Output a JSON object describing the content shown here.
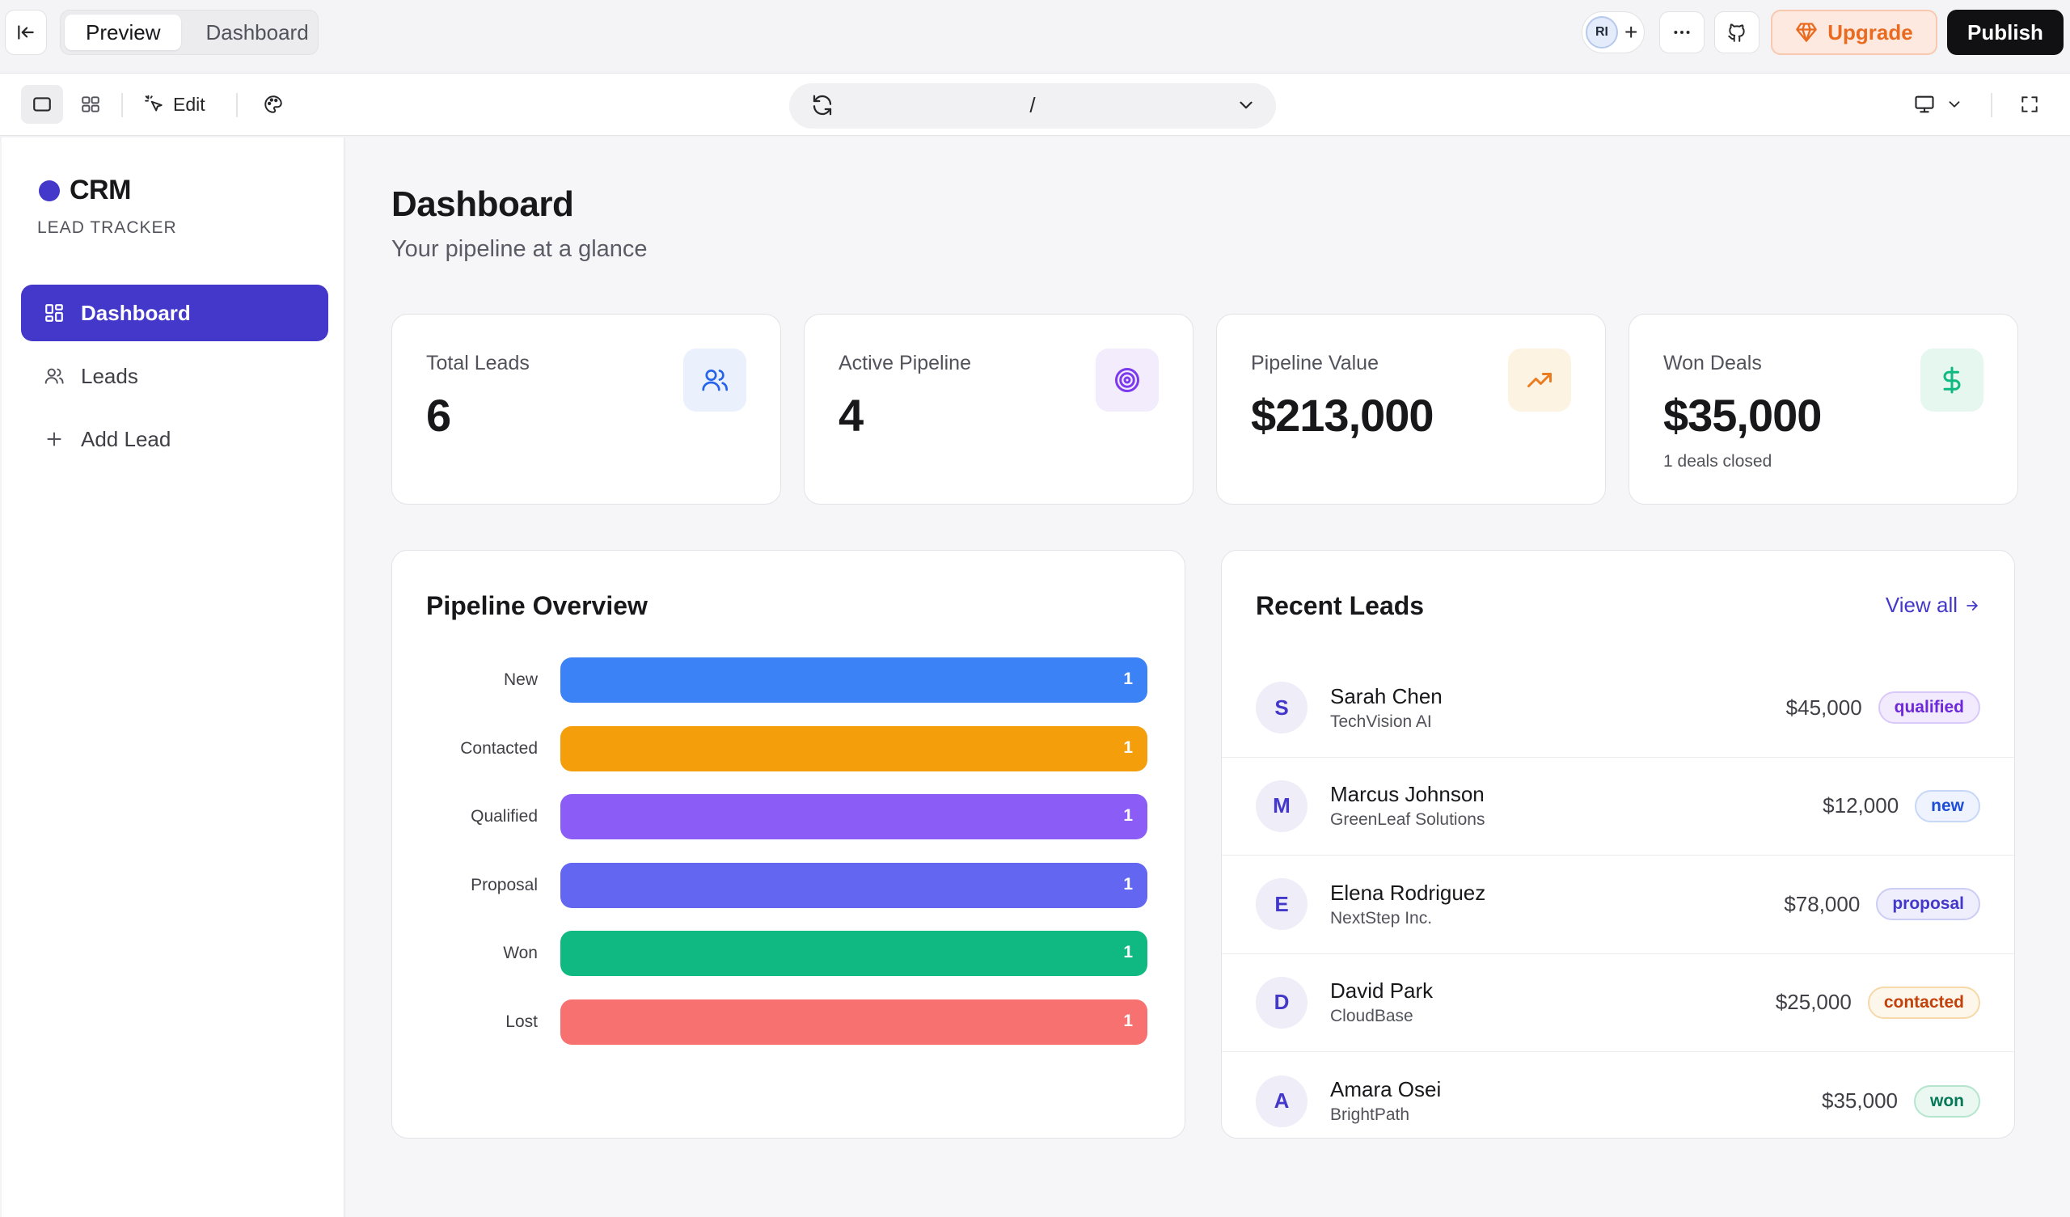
{
  "topbar": {
    "tabs": [
      {
        "label": "Preview",
        "active": true
      },
      {
        "label": "Dashboard",
        "active": false
      }
    ],
    "collaborator_initials": "RI",
    "upgrade_label": "Upgrade",
    "publish_label": "Publish"
  },
  "toolbar": {
    "edit_label": "Edit",
    "url_path": "/"
  },
  "sidebar": {
    "brand": "CRM",
    "brand_subtitle": "LEAD TRACKER",
    "items": [
      {
        "label": "Dashboard",
        "icon": "grid-icon",
        "active": true
      },
      {
        "label": "Leads",
        "icon": "users-icon",
        "active": false
      },
      {
        "label": "Add Lead",
        "icon": "plus-icon",
        "active": false
      }
    ]
  },
  "page": {
    "title": "Dashboard",
    "subtitle": "Your pipeline at a glance"
  },
  "stats": [
    {
      "label": "Total Leads",
      "value": "6",
      "note": "",
      "icon": "users-icon",
      "color": "#2563eb",
      "bg": "#eaf1fd"
    },
    {
      "label": "Active Pipeline",
      "value": "4",
      "note": "",
      "icon": "target-icon",
      "color": "#7c3aed",
      "bg": "#f2ecfd"
    },
    {
      "label": "Pipeline Value",
      "value": "$213,000",
      "note": "",
      "icon": "trending-up-icon",
      "color": "#ea7c1f",
      "bg": "#fdf3e2"
    },
    {
      "label": "Won Deals",
      "value": "$35,000",
      "note": "1 deals closed",
      "icon": "dollar-icon",
      "color": "#10b981",
      "bg": "#e6f7ef"
    }
  ],
  "pipeline": {
    "title": "Pipeline Overview"
  },
  "chart_data": {
    "type": "bar",
    "orientation": "horizontal",
    "title": "Pipeline Overview",
    "categories": [
      "New",
      "Contacted",
      "Qualified",
      "Proposal",
      "Won",
      "Lost"
    ],
    "values": [
      1,
      1,
      1,
      1,
      1,
      1
    ],
    "colors": [
      "#3b82f6",
      "#f59e0b",
      "#8b5cf6",
      "#6366f1",
      "#10b981",
      "#f87171"
    ],
    "max": 1
  },
  "recent": {
    "title": "Recent Leads",
    "view_all_label": "View all",
    "leads": [
      {
        "initial": "S",
        "name": "Sarah Chen",
        "company": "TechVision AI",
        "amount": "$45,000",
        "status": "qualified",
        "status_color": "#6d28d9",
        "status_bg": "#f1ebfd",
        "status_border": "#d9c8fa"
      },
      {
        "initial": "M",
        "name": "Marcus Johnson",
        "company": "GreenLeaf Solutions",
        "amount": "$12,000",
        "status": "new",
        "status_color": "#1d4ed8",
        "status_bg": "#eef3fd",
        "status_border": "#c6d7f8"
      },
      {
        "initial": "E",
        "name": "Elena Rodriguez",
        "company": "NextStep Inc.",
        "amount": "$78,000",
        "status": "proposal",
        "status_color": "#4338ca",
        "status_bg": "#eeeefc",
        "status_border": "#cccdf5"
      },
      {
        "initial": "D",
        "name": "David Park",
        "company": "CloudBase",
        "amount": "$25,000",
        "status": "contacted",
        "status_color": "#c2410c",
        "status_bg": "#fdf6ea",
        "status_border": "#f7d8a8"
      },
      {
        "initial": "A",
        "name": "Amara Osei",
        "company": "BrightPath",
        "amount": "$35,000",
        "status": "won",
        "status_color": "#047857",
        "status_bg": "#ebf8f1",
        "status_border": "#b5e5cd"
      }
    ]
  }
}
